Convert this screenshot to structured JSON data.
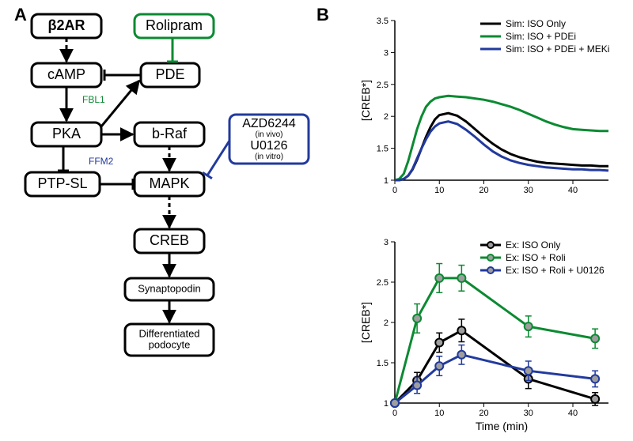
{
  "panel_labels": {
    "A": "A",
    "B": "B"
  },
  "diagram": {
    "type": "flowchart",
    "nodes": {
      "b2ar": {
        "label": "β2AR",
        "bold": true
      },
      "rolipram": {
        "label": "Rolipram",
        "stroke": "#0b8a32"
      },
      "camp": {
        "label": "cAMP"
      },
      "pde": {
        "label": "PDE"
      },
      "fbl1": {
        "label": "FBL1",
        "color": "#0b8a32",
        "plain": true
      },
      "pka": {
        "label": "PKA"
      },
      "braf": {
        "label": "b-Raf"
      },
      "azdbox": {
        "label1": "AZD6244",
        "sub1": "(in vivo)",
        "label2": "U0126",
        "sub2": "(in vitro)",
        "stroke": "#223a9e"
      },
      "ffm2": {
        "label": "FFM2",
        "color": "#223a9e",
        "plain": true
      },
      "ptpsl": {
        "label": "PTP-SL"
      },
      "mapk": {
        "label": "MAPK"
      },
      "creb": {
        "label": "CREB"
      },
      "synapto": {
        "label": "Synaptopodin"
      },
      "diffpod": {
        "label": "Differentiated\npodocyte"
      }
    },
    "style": {
      "node_stroke": "#000000",
      "node_stroke_width": 3,
      "node_fill": "#ffffff",
      "node_rx": 8,
      "font_size_main": 18,
      "font_size_small": 13,
      "font_size_sub": 10,
      "background": "#ffffff"
    }
  },
  "charts": {
    "sim": {
      "type": "line",
      "xlim": [
        0,
        48
      ],
      "ylim": [
        1.0,
        3.5
      ],
      "xtick_step": 10,
      "yticks": [
        1,
        1.5,
        2,
        2.5,
        3,
        3.5
      ],
      "ylabel": "[CREB*]",
      "legend_pos": "top-right",
      "background": "#ffffff",
      "axis_color": "#000000",
      "line_width": 3,
      "label_fontsize": 14,
      "tick_fontsize": 11,
      "series": [
        {
          "name": "Sim: ISO Only",
          "color": "#000000",
          "x": [
            0,
            1,
            2,
            3,
            4,
            5,
            6,
            7,
            8,
            9,
            10,
            12,
            14,
            16,
            18,
            20,
            22,
            24,
            26,
            28,
            30,
            32,
            34,
            36,
            38,
            40,
            42,
            44,
            46,
            48
          ],
          "y": [
            1.0,
            1.0,
            1.02,
            1.07,
            1.17,
            1.32,
            1.5,
            1.68,
            1.83,
            1.95,
            2.02,
            2.05,
            2.01,
            1.92,
            1.8,
            1.68,
            1.57,
            1.48,
            1.41,
            1.36,
            1.32,
            1.29,
            1.27,
            1.26,
            1.25,
            1.24,
            1.23,
            1.23,
            1.22,
            1.22
          ]
        },
        {
          "name": "Sim: ISO + PDEi",
          "color": "#0b8a32",
          "x": [
            0,
            1,
            2,
            3,
            4,
            5,
            6,
            7,
            8,
            9,
            10,
            12,
            14,
            16,
            18,
            20,
            22,
            24,
            26,
            28,
            30,
            32,
            34,
            36,
            38,
            40,
            42,
            44,
            46,
            48
          ],
          "y": [
            1.0,
            1.02,
            1.1,
            1.3,
            1.55,
            1.8,
            2.0,
            2.15,
            2.23,
            2.28,
            2.3,
            2.32,
            2.31,
            2.3,
            2.28,
            2.26,
            2.23,
            2.19,
            2.15,
            2.1,
            2.04,
            1.98,
            1.92,
            1.87,
            1.83,
            1.8,
            1.79,
            1.78,
            1.77,
            1.77
          ]
        },
        {
          "name": "Sim: ISO + PDEi + MEKi",
          "color": "#223a9e",
          "x": [
            0,
            1,
            2,
            3,
            4,
            5,
            6,
            7,
            8,
            9,
            10,
            12,
            14,
            16,
            18,
            20,
            22,
            24,
            26,
            28,
            30,
            32,
            34,
            36,
            38,
            40,
            42,
            44,
            46,
            48
          ],
          "y": [
            1.0,
            1.0,
            1.02,
            1.07,
            1.18,
            1.34,
            1.5,
            1.64,
            1.76,
            1.84,
            1.89,
            1.92,
            1.88,
            1.79,
            1.68,
            1.56,
            1.45,
            1.37,
            1.31,
            1.27,
            1.24,
            1.22,
            1.2,
            1.19,
            1.18,
            1.17,
            1.17,
            1.16,
            1.16,
            1.15
          ]
        }
      ]
    },
    "exp": {
      "type": "line-scatter",
      "xlim": [
        0,
        48
      ],
      "ylim": [
        1.0,
        3.0
      ],
      "xtick_step": 10,
      "yticks": [
        1,
        1.5,
        2,
        2.5,
        3
      ],
      "xlabel": "Time (min)",
      "ylabel": "[CREB*]",
      "legend_pos": "top-right",
      "background": "#ffffff",
      "axis_color": "#000000",
      "line_width": 3,
      "marker_size": 5,
      "marker_fill": "#9e9e9e",
      "err_width": 1.5,
      "label_fontsize": 14,
      "tick_fontsize": 11,
      "series": [
        {
          "name": "Ex: ISO Only",
          "color": "#000000",
          "x": [
            0,
            5,
            10,
            15,
            30,
            45
          ],
          "y": [
            1.0,
            1.28,
            1.75,
            1.9,
            1.3,
            1.05
          ],
          "err": [
            0,
            0.1,
            0.12,
            0.14,
            0.12,
            0.08
          ]
        },
        {
          "name": "Ex: ISO + Roli",
          "color": "#0b8a32",
          "x": [
            0,
            5,
            10,
            15,
            30,
            45
          ],
          "y": [
            1.0,
            2.05,
            2.55,
            2.55,
            1.95,
            1.8
          ],
          "err": [
            0,
            0.18,
            0.18,
            0.16,
            0.13,
            0.12
          ]
        },
        {
          "name": "Ex: ISO + Roli + U0126",
          "color": "#223a9e",
          "x": [
            0,
            5,
            10,
            15,
            30,
            45
          ],
          "y": [
            1.0,
            1.22,
            1.46,
            1.6,
            1.4,
            1.3
          ],
          "err": [
            0,
            0.1,
            0.12,
            0.12,
            0.12,
            0.1
          ]
        }
      ]
    }
  }
}
